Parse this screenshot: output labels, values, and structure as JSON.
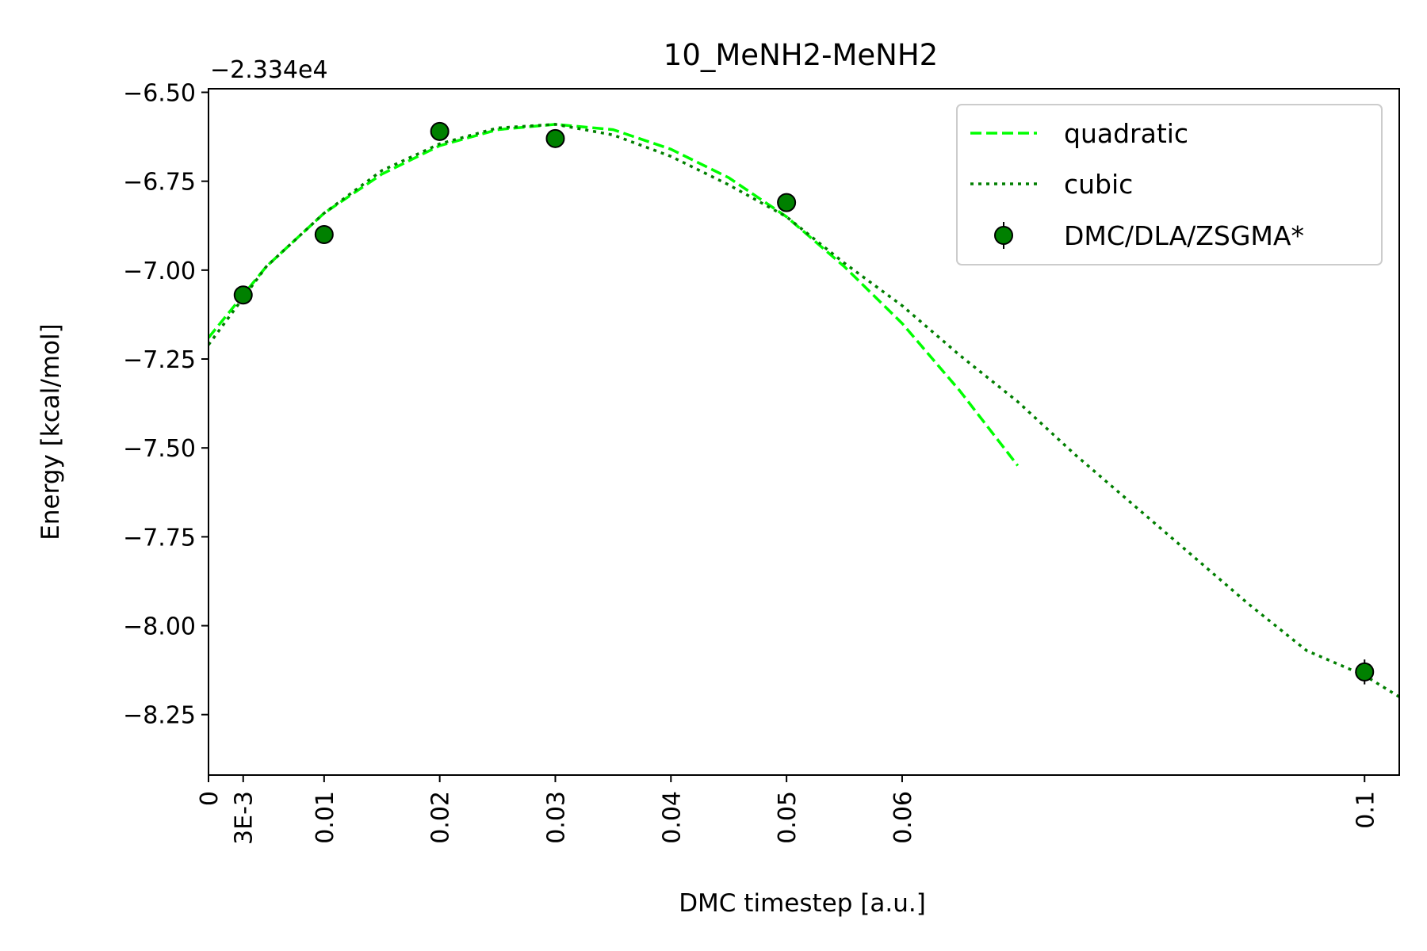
{
  "chart_data": {
    "type": "line",
    "title": "10_MeNH2-MeNH2",
    "xlabel": "DMC timestep [a.u.]",
    "ylabel": "Energy [kcal/mol]",
    "y_offset_label": "−2.334e4",
    "xlim": [
      0,
      0.103
    ],
    "ylim": [
      -8.42,
      -6.49
    ],
    "x_ticks": [
      {
        "value": 0,
        "label": "0"
      },
      {
        "value": 0.003,
        "label": "3E-3"
      },
      {
        "value": 0.01,
        "label": "0.01"
      },
      {
        "value": 0.02,
        "label": "0.02"
      },
      {
        "value": 0.03,
        "label": "0.03"
      },
      {
        "value": 0.04,
        "label": "0.04"
      },
      {
        "value": 0.05,
        "label": "0.05"
      },
      {
        "value": 0.06,
        "label": "0.06"
      },
      {
        "value": 0.1,
        "label": "0.1"
      }
    ],
    "y_ticks": [
      {
        "value": -6.5,
        "label": "−6.50"
      },
      {
        "value": -6.75,
        "label": "−6.75"
      },
      {
        "value": -7.0,
        "label": "−7.00"
      },
      {
        "value": -7.25,
        "label": "−7.25"
      },
      {
        "value": -7.5,
        "label": "−7.50"
      },
      {
        "value": -7.75,
        "label": "−7.75"
      },
      {
        "value": -8.0,
        "label": "−8.00"
      },
      {
        "value": -8.25,
        "label": "−8.25"
      }
    ],
    "grid": false,
    "legend_position": "top-right",
    "series": [
      {
        "name": "quadratic",
        "style": "dashed",
        "color": "#00ff00",
        "x": [
          0,
          0.005,
          0.01,
          0.015,
          0.02,
          0.025,
          0.03,
          0.035,
          0.04,
          0.045,
          0.05,
          0.055,
          0.06,
          0.065,
          0.07
        ],
        "y": [
          -7.19,
          -6.99,
          -6.84,
          -6.73,
          -6.65,
          -6.605,
          -6.59,
          -6.605,
          -6.66,
          -6.74,
          -6.85,
          -6.99,
          -7.15,
          -7.34,
          -7.55
        ]
      },
      {
        "name": "cubic",
        "style": "dotted",
        "color": "#007f00",
        "x": [
          0,
          0.005,
          0.01,
          0.015,
          0.02,
          0.025,
          0.03,
          0.035,
          0.04,
          0.045,
          0.05,
          0.055,
          0.06,
          0.065,
          0.07,
          0.075,
          0.08,
          0.085,
          0.09,
          0.095,
          0.1,
          0.103
        ],
        "y": [
          -7.21,
          -6.99,
          -6.84,
          -6.72,
          -6.645,
          -6.6,
          -6.59,
          -6.62,
          -6.68,
          -6.76,
          -6.85,
          -6.98,
          -7.1,
          -7.24,
          -7.37,
          -7.52,
          -7.66,
          -7.8,
          -7.94,
          -8.07,
          -8.14,
          -8.2
        ]
      },
      {
        "name": "DMC/DLA/ZSGMA*",
        "style": "markers-errorbars",
        "color": "#008000",
        "x": [
          0.003,
          0.01,
          0.02,
          0.03,
          0.05,
          0.1
        ],
        "y": [
          -7.07,
          -6.9,
          -6.61,
          -6.63,
          -6.81,
          -8.13
        ],
        "yerr": [
          0.015,
          0.02,
          0.02,
          0.02,
          0.015,
          0.035
        ]
      }
    ]
  }
}
